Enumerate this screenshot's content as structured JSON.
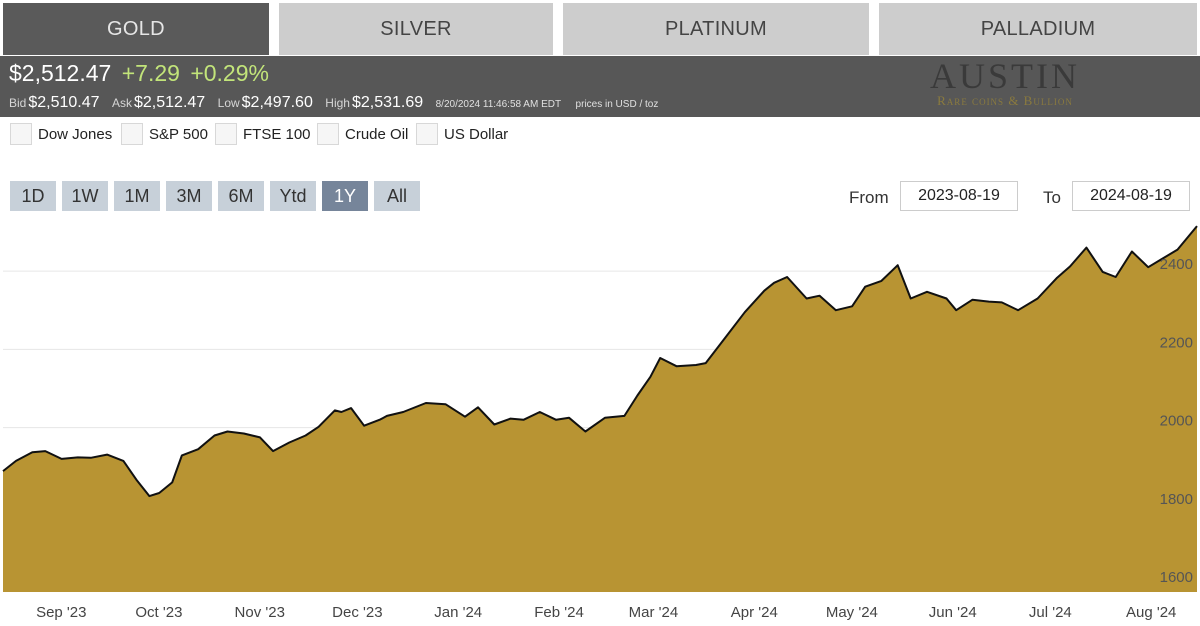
{
  "tabs": [
    {
      "label": "GOLD",
      "active": true
    },
    {
      "label": "SILVER",
      "active": false
    },
    {
      "label": "PLATINUM",
      "active": false
    },
    {
      "label": "PALLADIUM",
      "active": false
    }
  ],
  "quote": {
    "price": "$2,512.47",
    "change": "+7.29",
    "change_pct": "+0.29%",
    "bid_label": "Bid",
    "bid": "$2,510.47",
    "ask_label": "Ask",
    "ask": "$2,512.47",
    "low_label": "Low",
    "low": "$2,497.60",
    "high_label": "High",
    "high": "$2,531.69",
    "timestamp": "8/20/2024 11:46:58 AM EDT",
    "units": "prices in USD / toz"
  },
  "logo": {
    "name": "AUSTIN",
    "tagline": "Rare coins & Bullion"
  },
  "compare": [
    "Dow Jones",
    "S&P 500",
    "FTSE 100",
    "Crude Oil",
    "US Dollar"
  ],
  "ranges": [
    {
      "label": "1D",
      "active": false
    },
    {
      "label": "1W",
      "active": false
    },
    {
      "label": "1M",
      "active": false
    },
    {
      "label": "3M",
      "active": false
    },
    {
      "label": "6M",
      "active": false
    },
    {
      "label": "Ytd",
      "active": false
    },
    {
      "label": "1Y",
      "active": true
    },
    {
      "label": "All",
      "active": false
    }
  ],
  "date_range": {
    "from_label": "From",
    "from": "2023-08-19",
    "to_label": "To",
    "to": "2024-08-19"
  },
  "colors": {
    "area": "#b89433",
    "line": "#111111",
    "tab_active": "#5a5a5a",
    "tab_inactive": "#cdcdcd",
    "quote_bg": "#575757",
    "change": "#c2e47a",
    "range_active": "#76859a",
    "range_inactive": "#c7d0d9"
  },
  "chart_data": {
    "type": "area",
    "x_ticks": [
      "Sep '23",
      "Oct '23",
      "Nov '23",
      "Dec '23",
      "Jan '24",
      "Feb '24",
      "Mar '24",
      "Apr '24",
      "May '24",
      "Jun '24",
      "Jul '24",
      "Aug '24"
    ],
    "y_ticks": [
      1600,
      1800,
      2000,
      2200,
      2400
    ],
    "ylim": [
      1580,
      2505
    ],
    "xlim": [
      "2023-08-19",
      "2024-08-20"
    ],
    "grid": true,
    "y_axis_side": "right",
    "series": [
      {
        "x": [
          "2023-08-19",
          "2023-08-23",
          "2023-08-28",
          "2023-09-01",
          "2023-09-06",
          "2023-09-11",
          "2023-09-15",
          "2023-09-20",
          "2023-09-25",
          "2023-09-29",
          "2023-10-03",
          "2023-10-06",
          "2023-10-10",
          "2023-10-13",
          "2023-10-18",
          "2023-10-23",
          "2023-10-27",
          "2023-11-01",
          "2023-11-06",
          "2023-11-10",
          "2023-11-15",
          "2023-11-20",
          "2023-11-24",
          "2023-11-29",
          "2023-12-01",
          "2023-12-04",
          "2023-12-08",
          "2023-12-13",
          "2023-12-15",
          "2023-12-20",
          "2023-12-27",
          "2024-01-02",
          "2024-01-08",
          "2024-01-12",
          "2024-01-17",
          "2024-01-22",
          "2024-01-26",
          "2024-01-31",
          "2024-02-05",
          "2024-02-09",
          "2024-02-14",
          "2024-02-20",
          "2024-02-26",
          "2024-03-01",
          "2024-03-05",
          "2024-03-08",
          "2024-03-13",
          "2024-03-19",
          "2024-03-22",
          "2024-03-28",
          "2024-04-03",
          "2024-04-09",
          "2024-04-12",
          "2024-04-16",
          "2024-04-22",
          "2024-04-26",
          "2024-05-01",
          "2024-05-06",
          "2024-05-10",
          "2024-05-15",
          "2024-05-20",
          "2024-05-24",
          "2024-05-29",
          "2024-06-04",
          "2024-06-07",
          "2024-06-12",
          "2024-06-17",
          "2024-06-21",
          "2024-06-26",
          "2024-07-02",
          "2024-07-08",
          "2024-07-12",
          "2024-07-17",
          "2024-07-22",
          "2024-07-26",
          "2024-07-31",
          "2024-08-05",
          "2024-08-09",
          "2024-08-14",
          "2024-08-20"
        ],
        "y": [
          1889,
          1915,
          1937,
          1940,
          1920,
          1924,
          1923,
          1931,
          1915,
          1867,
          1825,
          1833,
          1860,
          1929,
          1945,
          1980,
          1990,
          1985,
          1975,
          1940,
          1962,
          1980,
          2002,
          2044,
          2040,
          2050,
          2005,
          2021,
          2030,
          2040,
          2063,
          2060,
          2028,
          2052,
          2008,
          2023,
          2020,
          2040,
          2020,
          2025,
          1990,
          2025,
          2030,
          2082,
          2130,
          2178,
          2157,
          2160,
          2165,
          2230,
          2295,
          2350,
          2370,
          2385,
          2330,
          2337,
          2300,
          2310,
          2360,
          2375,
          2415,
          2330,
          2347,
          2330,
          2300,
          2327,
          2322,
          2320,
          2300,
          2330,
          2383,
          2412,
          2460,
          2398,
          2385,
          2450,
          2410,
          2430,
          2455,
          2515
        ]
      }
    ]
  }
}
